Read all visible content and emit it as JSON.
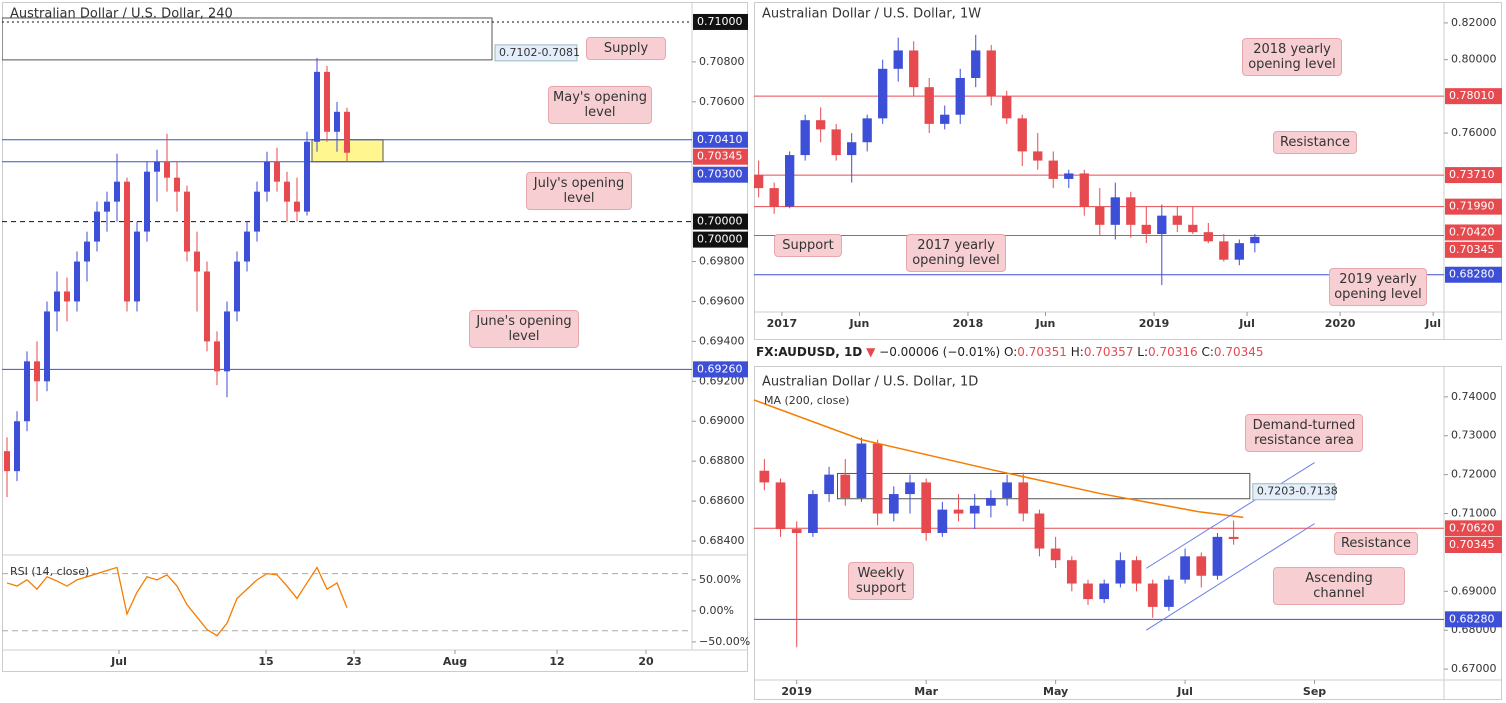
{
  "chart_data": [
    {
      "type": "candlestick",
      "title": "Australian Dollar / U.S. Dollar, 240",
      "up_color": "#3d4fd6",
      "down_color": "#e64a4f",
      "x": [
        0.5,
        1.5,
        2.5,
        3.5,
        4.5,
        5.5,
        6.5,
        7.5,
        8.5,
        9.5,
        10.5,
        11.5,
        12.5,
        13.5,
        14.5,
        15.5,
        16.5,
        17.5,
        18.5,
        19.5,
        20.5,
        21.5,
        22.5,
        23.5,
        24.5,
        25.5,
        26.5,
        27.5,
        28.5,
        29.5,
        30.5,
        31.5,
        32.5,
        33.5,
        34.5
      ],
      "open": [
        0.6885,
        0.6875,
        0.69,
        0.693,
        0.692,
        0.6955,
        0.6965,
        0.696,
        0.698,
        0.699,
        0.7005,
        0.701,
        0.702,
        0.696,
        0.6995,
        0.7025,
        0.703,
        0.7022,
        0.7015,
        0.6985,
        0.6975,
        0.694,
        0.6925,
        0.6955,
        0.698,
        0.6995,
        0.7015,
        0.703,
        0.702,
        0.701,
        0.7005,
        0.704,
        0.7075,
        0.7045,
        0.7055
      ],
      "high": [
        0.6892,
        0.6905,
        0.6935,
        0.694,
        0.696,
        0.6975,
        0.6972,
        0.6985,
        0.6995,
        0.701,
        0.7015,
        0.7034,
        0.7022,
        0.7,
        0.703,
        0.7036,
        0.7044,
        0.703,
        0.7018,
        0.6995,
        0.698,
        0.6945,
        0.696,
        0.6985,
        0.7,
        0.702,
        0.7035,
        0.7037,
        0.7025,
        0.7022,
        0.7045,
        0.7082,
        0.7078,
        0.706,
        0.7057
      ],
      "low": [
        0.6862,
        0.687,
        0.6895,
        0.691,
        0.6915,
        0.6945,
        0.695,
        0.6955,
        0.697,
        0.6985,
        0.6995,
        0.7,
        0.6955,
        0.6955,
        0.699,
        0.701,
        0.7015,
        0.7005,
        0.698,
        0.6955,
        0.6935,
        0.6918,
        0.6912,
        0.695,
        0.6975,
        0.699,
        0.701,
        0.7015,
        0.7,
        0.7,
        0.7003,
        0.7035,
        0.704,
        0.7035,
        0.703
      ],
      "close": [
        0.6875,
        0.69,
        0.693,
        0.692,
        0.6955,
        0.6965,
        0.696,
        0.698,
        0.699,
        0.7005,
        0.701,
        0.702,
        0.696,
        0.6995,
        0.7025,
        0.703,
        0.7022,
        0.7015,
        0.6985,
        0.6975,
        0.694,
        0.6925,
        0.6955,
        0.698,
        0.6995,
        0.7015,
        0.703,
        0.702,
        0.701,
        0.7005,
        0.704,
        0.7075,
        0.7045,
        0.7055,
        0.70345
      ],
      "xlim": [
        0,
        69
      ],
      "xticks": [
        {
          "value": 11.7,
          "label": "Jul"
        },
        {
          "value": 26.4,
          "label": "15"
        },
        {
          "value": 35.2,
          "label": "23"
        },
        {
          "value": 45.3,
          "label": "Aug"
        },
        {
          "value": 55.5,
          "label": "12"
        },
        {
          "value": 64.4,
          "label": "20"
        }
      ],
      "ylim": [
        0.6834,
        0.711
      ],
      "yticks": [
        {
          "value": 0.708,
          "label": "0.70800"
        },
        {
          "value": 0.706,
          "label": "0.70600"
        },
        {
          "value": 0.698,
          "label": "0.69800"
        },
        {
          "value": 0.696,
          "label": "0.69600"
        },
        {
          "value": 0.694,
          "label": "0.69400"
        },
        {
          "value": 0.692,
          "label": "0.69200"
        },
        {
          "value": 0.69,
          "label": "0.69000"
        },
        {
          "value": 0.688,
          "label": "0.68800"
        },
        {
          "value": 0.686,
          "label": "0.68600"
        },
        {
          "value": 0.684,
          "label": "0.68400"
        }
      ],
      "levels": [
        {
          "value": 0.71,
          "label": "0.71000",
          "color": "#111111",
          "style": "dotted"
        },
        {
          "value": 0.7041,
          "label": "0.70410",
          "color": "#3d4fd6",
          "style": "solid"
        },
        {
          "value": 0.70345,
          "label": "0.70345",
          "color": "#e64a4f",
          "style": "none"
        },
        {
          "value": 0.703,
          "label": "0.70300",
          "color": "#3d4fd6",
          "style": "solid"
        },
        {
          "value": 0.7,
          "label": "0.70000",
          "color": "#111111",
          "style": "dashed"
        },
        {
          "value": 0.7,
          "label": "0.70000",
          "color": "#111111",
          "style": "none"
        },
        {
          "value": 0.6926,
          "label": "0.69260",
          "color": "#3d4fd6",
          "style": "solid"
        }
      ],
      "rects": [
        {
          "x": [
            0,
            49
          ],
          "y": [
            0.7102,
            0.7081
          ],
          "label": "0.7102-0.7081",
          "fill": "none"
        },
        {
          "x": [
            31,
            38.1
          ],
          "y": [
            0.7041,
            0.703
          ],
          "fill": "#fff68f"
        }
      ],
      "annotations": [
        "Supply",
        "May's opening level",
        "July's opening level",
        "June's opening level"
      ],
      "rsi": {
        "title": "RSI (14, close)",
        "color": "#f57c00",
        "values": [
          45,
          40,
          50,
          35,
          55,
          48,
          40,
          50,
          55,
          60,
          65,
          70,
          -5,
          30,
          55,
          50,
          58,
          40,
          10,
          -10,
          -30,
          -40,
          -20,
          20,
          35,
          50,
          60,
          58,
          40,
          20,
          45,
          70,
          35,
          45,
          5
        ],
        "ylim": [
          -63,
          90
        ],
        "yticks": [
          {
            "value": 50,
            "label": "50.00%"
          },
          {
            "value": 0,
            "label": "0.00%"
          },
          {
            "value": -50,
            "label": "−50.00%"
          }
        ],
        "bands": [
          60,
          -32
        ]
      }
    },
    {
      "type": "candlestick",
      "title": "Australian Dollar / U.S. Dollar, 1W",
      "up_color": "#3d4fd6",
      "down_color": "#e64a4f",
      "x": [
        -1.5,
        -0.5,
        0.5,
        1.5,
        2.5,
        3.5,
        4.5,
        5.5,
        6.5,
        7.5,
        8.5,
        9.5,
        10.5,
        11.5,
        12.5,
        13.5,
        14.5,
        15.5,
        16.5,
        17.5,
        18.5,
        19.5,
        20.5,
        21.5,
        22.5,
        23.5,
        24.5,
        25.5,
        26.5,
        27.5,
        28.5,
        29.5,
        30.5
      ],
      "open": [
        0.737,
        0.73,
        0.72,
        0.748,
        0.767,
        0.762,
        0.748,
        0.755,
        0.768,
        0.795,
        0.805,
        0.785,
        0.765,
        0.77,
        0.79,
        0.805,
        0.78,
        0.768,
        0.75,
        0.745,
        0.735,
        0.738,
        0.72,
        0.71,
        0.725,
        0.71,
        0.705,
        0.715,
        0.71,
        0.706,
        0.701,
        0.691,
        0.7
      ],
      "high": [
        0.745,
        0.733,
        0.75,
        0.77,
        0.774,
        0.765,
        0.76,
        0.77,
        0.8,
        0.812,
        0.81,
        0.79,
        0.775,
        0.795,
        0.8135,
        0.808,
        0.783,
        0.77,
        0.76,
        0.75,
        0.74,
        0.74,
        0.73,
        0.733,
        0.728,
        0.72,
        0.721,
        0.72,
        0.72,
        0.711,
        0.705,
        0.702,
        0.705
      ],
      "low": [
        0.725,
        0.716,
        0.719,
        0.745,
        0.755,
        0.745,
        0.733,
        0.75,
        0.765,
        0.788,
        0.78,
        0.76,
        0.762,
        0.765,
        0.785,
        0.775,
        0.765,
        0.742,
        0.74,
        0.73,
        0.73,
        0.715,
        0.704,
        0.702,
        0.703,
        0.7,
        0.6772,
        0.706,
        0.705,
        0.7,
        0.69,
        0.688,
        0.695
      ],
      "close": [
        0.73,
        0.72,
        0.748,
        0.767,
        0.762,
        0.748,
        0.755,
        0.768,
        0.795,
        0.805,
        0.785,
        0.765,
        0.77,
        0.79,
        0.805,
        0.78,
        0.768,
        0.75,
        0.745,
        0.735,
        0.738,
        0.72,
        0.71,
        0.725,
        0.71,
        0.705,
        0.715,
        0.71,
        0.706,
        0.701,
        0.691,
        0.7,
        0.70345
      ],
      "xlim": [
        -1.8,
        42.7
      ],
      "xticks": [
        {
          "value": 0,
          "label": "2017"
        },
        {
          "value": 5,
          "label": "Jun"
        },
        {
          "value": 12,
          "label": "2018"
        },
        {
          "value": 17,
          "label": "Jun"
        },
        {
          "value": 24,
          "label": "2019"
        },
        {
          "value": 30,
          "label": "Jul"
        },
        {
          "value": 36,
          "label": "2020"
        },
        {
          "value": 42,
          "label": "Jul"
        }
      ],
      "ylim": [
        0.6625,
        0.8314
      ],
      "yticks": [
        {
          "value": 0.82,
          "label": "0.82000"
        },
        {
          "value": 0.8,
          "label": "0.80000"
        },
        {
          "value": 0.76,
          "label": "0.76000"
        }
      ],
      "levels": [
        {
          "value": 0.7801,
          "label": "0.78010",
          "color": "#e64a4f",
          "style": "solid"
        },
        {
          "value": 0.7371,
          "label": "0.73710",
          "color": "#e64a4f",
          "style": "solid"
        },
        {
          "value": 0.7199,
          "label": "0.71990",
          "color": "#e64a4f",
          "style": "solid"
        },
        {
          "value": 0.7042,
          "label": "0.70420",
          "color": "#e64a4f",
          "style": "solid"
        },
        {
          "value": 0.70345,
          "label": "0.70345",
          "color": "#e64a4f",
          "style": "none"
        },
        {
          "value": 0.6828,
          "label": "0.68280",
          "color": "#3d4fd6",
          "style": "solid"
        }
      ],
      "annotations": [
        "2018 yearly opening level",
        "Resistance",
        "Support",
        "2017 yearly opening level",
        "2019 yearly opening level"
      ]
    },
    {
      "type": "candlestick",
      "title": "Australian Dollar / U.S. Dollar, 1D",
      "up_color": "#3d4fd6",
      "down_color": "#e64a4f",
      "quote": {
        "symbol": "FX:AUDUSD, 1D",
        "direction": "▼",
        "change": "−0.00006 (−0.01%)",
        "open_label": "O:",
        "open": "0.70351",
        "high_label": "H:",
        "high": "0.70357",
        "low_label": "L:",
        "low": "0.70316",
        "close_label": "C:",
        "close": "0.70345"
      },
      "x": [
        -0.5,
        -0.25,
        0,
        0.25,
        0.5,
        0.75,
        1,
        1.25,
        1.5,
        1.75,
        2,
        2.25,
        2.5,
        2.75,
        3,
        3.25,
        3.5,
        3.75,
        4,
        4.25,
        4.5,
        4.75,
        5,
        5.25,
        5.5,
        5.75,
        6,
        6.25,
        6.5,
        6.75
      ],
      "open": [
        0.721,
        0.718,
        0.706,
        0.705,
        0.715,
        0.72,
        0.714,
        0.728,
        0.71,
        0.715,
        0.718,
        0.705,
        0.711,
        0.71,
        0.712,
        0.714,
        0.718,
        0.71,
        0.701,
        0.698,
        0.692,
        0.688,
        0.692,
        0.698,
        0.692,
        0.686,
        0.693,
        0.699,
        0.694,
        0.704
      ],
      "high": [
        0.724,
        0.719,
        0.708,
        0.716,
        0.722,
        0.724,
        0.7295,
        0.729,
        0.717,
        0.72,
        0.719,
        0.713,
        0.715,
        0.715,
        0.716,
        0.72,
        0.7205,
        0.711,
        0.704,
        0.699,
        0.693,
        0.693,
        0.7,
        0.699,
        0.693,
        0.694,
        0.701,
        0.7,
        0.705,
        0.7082
      ],
      "low": [
        0.716,
        0.704,
        0.6756,
        0.704,
        0.713,
        0.712,
        0.713,
        0.707,
        0.708,
        0.71,
        0.703,
        0.704,
        0.708,
        0.706,
        0.709,
        0.712,
        0.708,
        0.699,
        0.696,
        0.69,
        0.6865,
        0.687,
        0.691,
        0.69,
        0.6832,
        0.685,
        0.692,
        0.691,
        0.693,
        0.702
      ],
      "close": [
        0.718,
        0.706,
        0.705,
        0.715,
        0.72,
        0.714,
        0.728,
        0.71,
        0.715,
        0.718,
        0.705,
        0.711,
        0.71,
        0.712,
        0.714,
        0.718,
        0.71,
        0.701,
        0.698,
        0.692,
        0.688,
        0.692,
        0.698,
        0.692,
        0.686,
        0.693,
        0.699,
        0.694,
        0.704,
        0.70345
      ],
      "ma": {
        "name": "MA (200, close)",
        "color": "#f57c00",
        "x": [
          -0.66,
          1,
          3,
          4.7,
          6.2,
          6.9
        ],
        "values": [
          0.7392,
          0.729,
          0.7213,
          0.7151,
          0.7105,
          0.709
        ]
      },
      "lines": [
        {
          "x": [
            5.4,
            8
          ],
          "y": [
            0.6959,
            0.7231
          ],
          "color": "#6b7be8"
        },
        {
          "x": [
            5.4,
            8
          ],
          "y": [
            0.68,
            0.7074
          ],
          "color": "#6b7be8"
        }
      ],
      "xlim": [
        -0.66,
        10
      ],
      "xticks": [
        {
          "value": 0,
          "label": "2019"
        },
        {
          "value": 2,
          "label": "Mar"
        },
        {
          "value": 4,
          "label": "May"
        },
        {
          "value": 6,
          "label": "Jul"
        },
        {
          "value": 8,
          "label": "Sep"
        }
      ],
      "ylim": [
        0.6672,
        0.7469
      ],
      "yticks": [
        {
          "value": 0.74,
          "label": "0.74000"
        },
        {
          "value": 0.73,
          "label": "0.73000"
        },
        {
          "value": 0.72,
          "label": "0.72000"
        },
        {
          "value": 0.71,
          "label": "0.71000"
        },
        {
          "value": 0.69,
          "label": "0.69000"
        },
        {
          "value": 0.68,
          "label": "0.68000"
        },
        {
          "value": 0.67,
          "label": "0.67000"
        }
      ],
      "levels": [
        {
          "value": 0.7062,
          "label": "0.70620",
          "color": "#e64a4f",
          "style": "solid"
        },
        {
          "value": 0.70345,
          "label": "0.70345",
          "color": "#e64a4f",
          "style": "none"
        },
        {
          "value": 0.6828,
          "label": "0.68280",
          "color": "#3d4fd6",
          "style": "solid"
        }
      ],
      "rects": [
        {
          "x": [
            0.63,
            7
          ],
          "y": [
            0.7203,
            0.7138
          ],
          "label": "0.7203-0.7138",
          "fill": "none"
        }
      ],
      "annotations": [
        "Demand-turned resistance area",
        "Resistance",
        "Ascending channel",
        "Weekly support"
      ]
    }
  ]
}
